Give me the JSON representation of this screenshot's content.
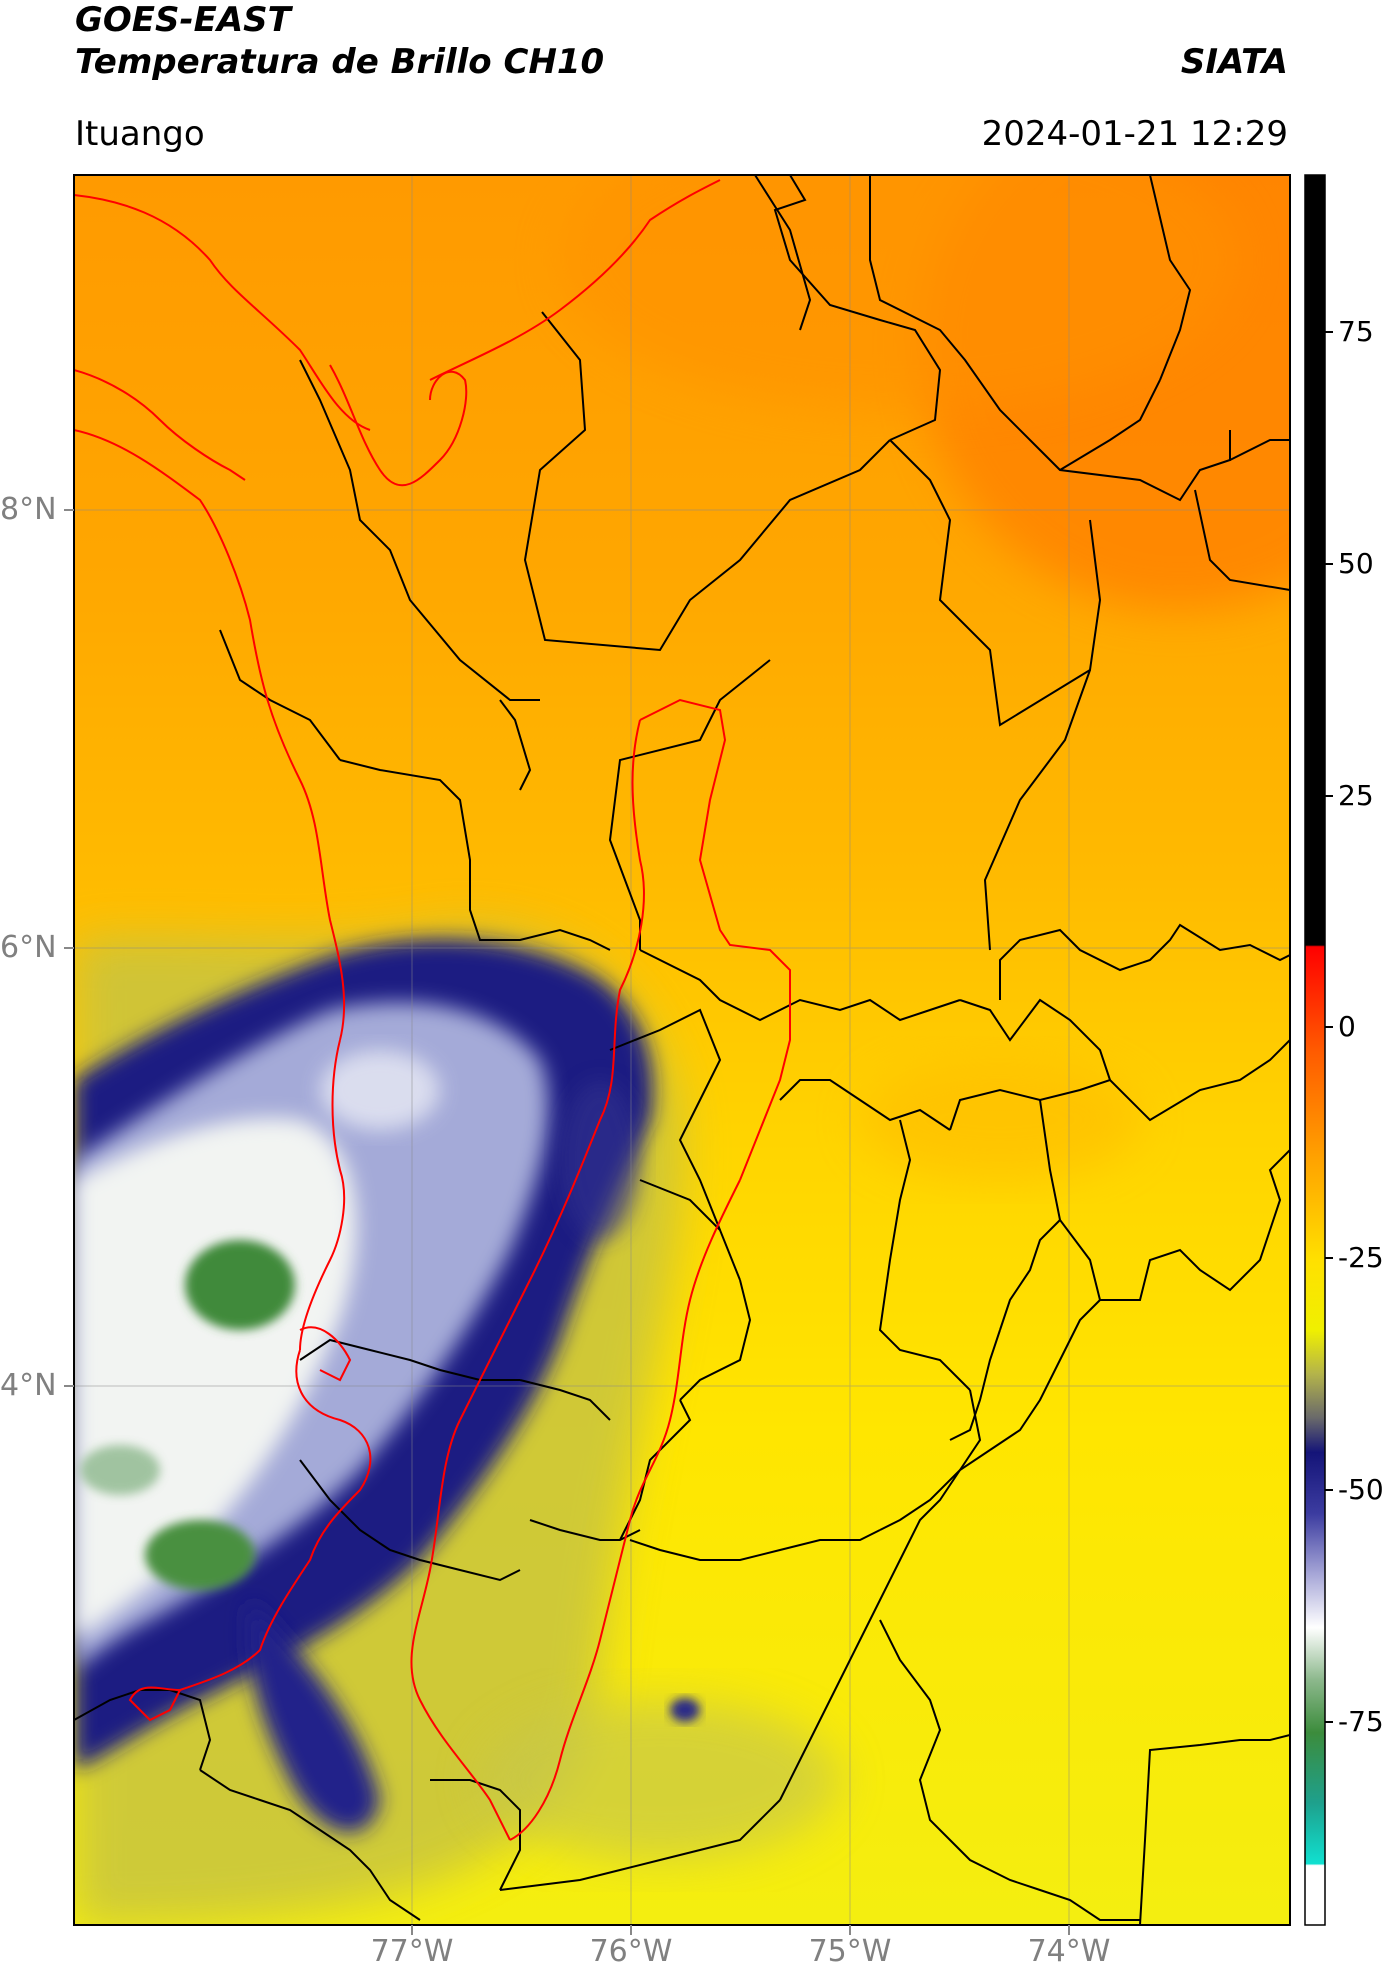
{
  "header": {
    "title_line1": "GOES-EAST",
    "title_line2": "Temperatura de Brillo CH10",
    "organization": "SIATA",
    "location": "Ituango",
    "timestamp": "2024-01-21 12:29"
  },
  "map": {
    "lat_labels": [
      "8°N",
      "6°N",
      "4°N"
    ],
    "lon_labels": [
      "77°W",
      "76°W",
      "75°W",
      "74°W"
    ],
    "colors": {
      "warm_orange": "#ff8c00",
      "orange": "#ffa500",
      "yellow": "#ffee00",
      "olive": "#c8c84a",
      "dark_blue": "#1a1a80",
      "light_blue": "#a0a8d8",
      "white": "#f4f6f4",
      "green": "#4a9040",
      "border_black": "#000000",
      "border_red": "#ff0000"
    }
  },
  "colorbar": {
    "tick_labels": [
      "75",
      "50",
      "25",
      "0",
      "-25",
      "-50",
      "-75"
    ],
    "min": -100,
    "max": 90
  }
}
